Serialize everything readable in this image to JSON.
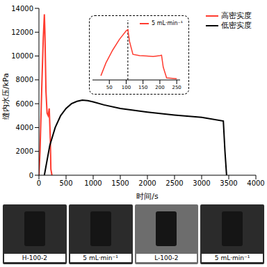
{
  "chart_data": [
    {
      "type": "line",
      "xlabel": "时间/s",
      "ylabel": "缝内水压/kPa",
      "xlim": [
        0,
        4000
      ],
      "xticks": [
        0,
        500,
        1000,
        1500,
        2000,
        2500,
        3000,
        3500,
        4000
      ],
      "ylim": [
        0,
        14000
      ],
      "yticks": [
        0,
        2000,
        4000,
        6000,
        8000,
        10000,
        12000,
        14000
      ],
      "grid": false,
      "legend": "upper right",
      "series": [
        {
          "name": "高密实度",
          "color": "#ff3b2f",
          "x": [
            0,
            20,
            50,
            80,
            100,
            110,
            130,
            150,
            170,
            190,
            210,
            220,
            240
          ],
          "values": [
            0,
            2000,
            7000,
            11500,
            13500,
            12000,
            7000,
            5200,
            5000,
            5600,
            3000,
            500,
            0
          ]
        },
        {
          "name": "低密实度",
          "color": "#000000",
          "x": [
            100,
            200,
            300,
            400,
            500,
            600,
            700,
            800,
            900,
            1000,
            1200,
            1500,
            2000,
            2500,
            3000,
            3400,
            3430,
            3460
          ],
          "values": [
            0,
            2500,
            4000,
            5000,
            5600,
            6000,
            6200,
            6300,
            6250,
            6150,
            5900,
            5600,
            5300,
            5050,
            4850,
            4550,
            2000,
            0
          ]
        }
      ]
    },
    {
      "type": "line",
      "xlim": [
        0,
        260
      ],
      "xticks": [
        50,
        100,
        150,
        200,
        250
      ],
      "ylim": [
        0,
        14000
      ],
      "tick_labels": "x",
      "grid": false,
      "legend": "upper right",
      "vline": 105,
      "series": [
        {
          "name": "5 mL·min⁻¹",
          "color": "#ff3b2f",
          "x": [
            25,
            40,
            60,
            80,
            100,
            105,
            110,
            120,
            140,
            160,
            180,
            200,
            205,
            210,
            220,
            250
          ],
          "values": [
            1000,
            4000,
            7000,
            9500,
            11500,
            11800,
            9000,
            6000,
            5700,
            5600,
            5500,
            5700,
            5800,
            3000,
            500,
            300
          ]
        }
      ]
    }
  ],
  "photo_labels": [
    "H-100-2",
    "5 mL·min⁻¹",
    "L-100-2",
    "5 mL·min⁻¹"
  ]
}
